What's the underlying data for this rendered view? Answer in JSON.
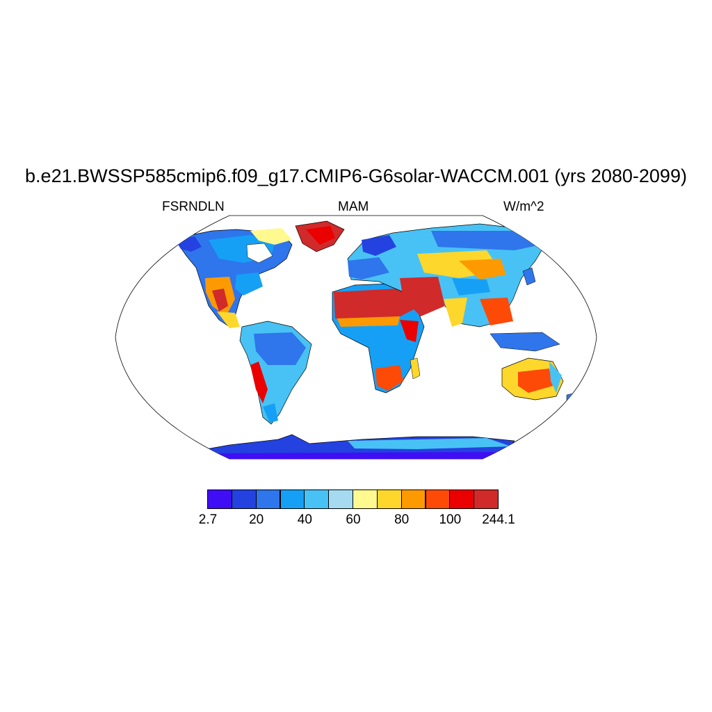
{
  "figure": {
    "title": "b.e21.BWSSP585cmip6.f09_g17.CMIP6-G6solar-WACCM.001 (yrs 2080-2099)",
    "left_subtitle": "FSRNDLN",
    "center_subtitle": "MAM",
    "right_subtitle": "W/m^2"
  },
  "map": {
    "projection": "Robinson",
    "ocean_color": "#ffffff",
    "coastline_color": "#000000"
  },
  "colorbar": {
    "colors": [
      "#3f0ef5",
      "#2342e0",
      "#2f75ec",
      "#16a0f5",
      "#48c2f4",
      "#a6daf1",
      "#fff98f",
      "#fed72c",
      "#fd9a02",
      "#fd4a06",
      "#ea0000",
      "#d12a2a"
    ],
    "labels": [
      "2.7",
      "20",
      "40",
      "60",
      "80",
      "100",
      "244.1"
    ]
  }
}
